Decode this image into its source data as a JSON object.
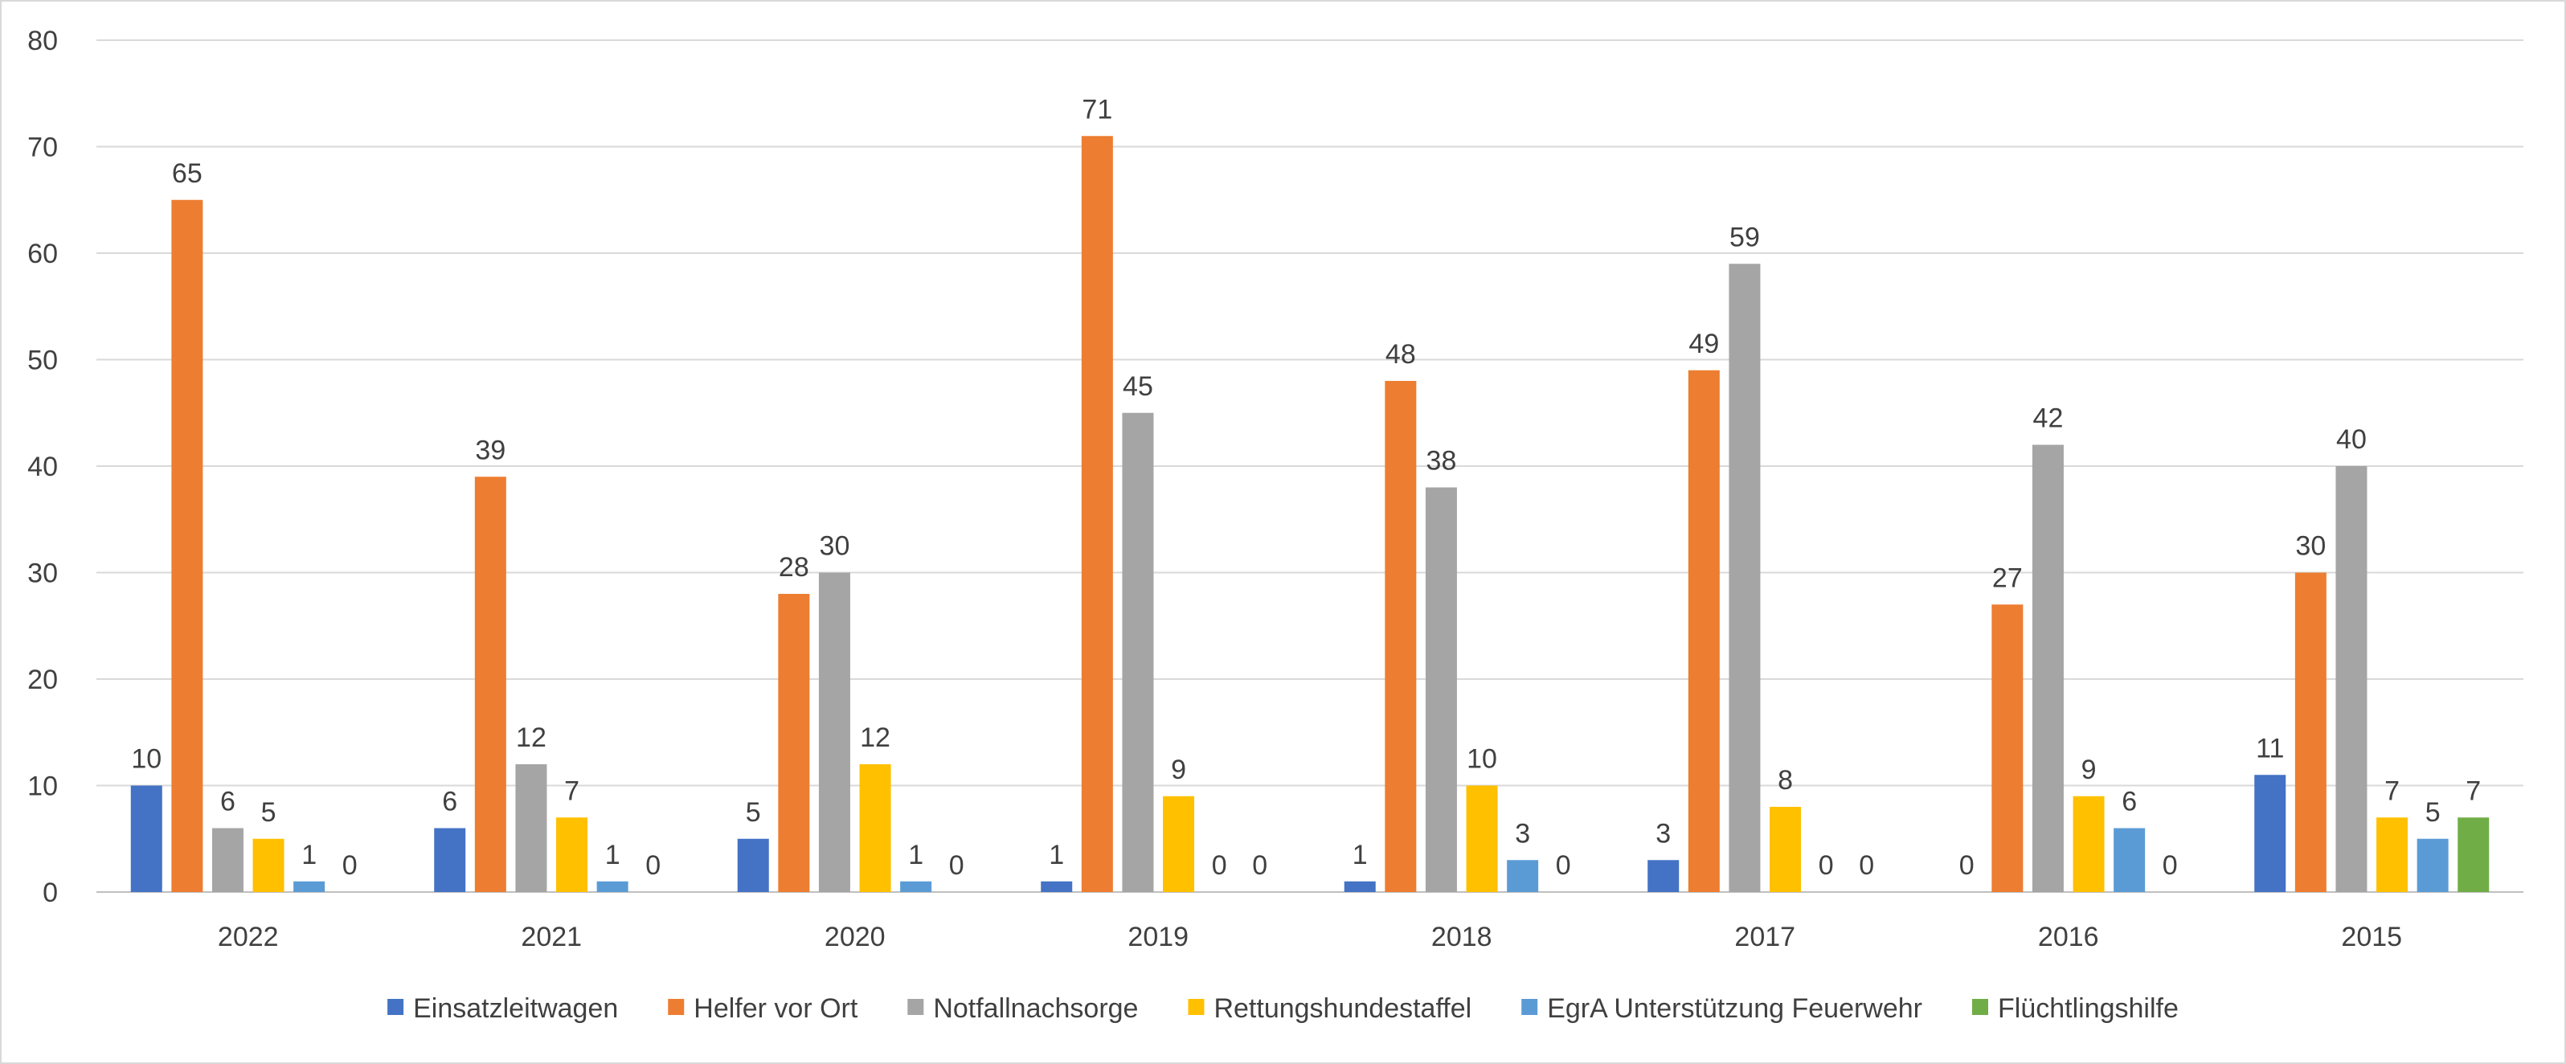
{
  "chart_data": {
    "type": "bar",
    "title": "",
    "xlabel": "",
    "ylabel": "",
    "ylim": [
      0,
      80
    ],
    "yticks": [
      0,
      10,
      20,
      30,
      40,
      50,
      60,
      70,
      80
    ],
    "grid": true,
    "legend_position": "bottom",
    "categories": [
      "2022",
      "2021",
      "2020",
      "2019",
      "2018",
      "2017",
      "2016",
      "2015"
    ],
    "series": [
      {
        "name": "Einsatzleitwagen",
        "color": "#4472C4",
        "values": [
          10,
          6,
          5,
          1,
          1,
          3,
          0,
          11
        ]
      },
      {
        "name": "Helfer vor Ort",
        "color": "#ED7D31",
        "values": [
          65,
          39,
          28,
          71,
          48,
          49,
          27,
          30
        ]
      },
      {
        "name": "Notfallnachsorge",
        "color": "#A5A5A5",
        "values": [
          6,
          12,
          30,
          45,
          38,
          59,
          42,
          40
        ]
      },
      {
        "name": "Rettungshundestaffel",
        "color": "#FFC000",
        "values": [
          5,
          7,
          12,
          9,
          10,
          8,
          9,
          7
        ]
      },
      {
        "name": "EgrA Unterstützung Feuerwehr",
        "color": "#5B9BD5",
        "values": [
          1,
          1,
          1,
          0,
          3,
          0,
          6,
          5
        ]
      },
      {
        "name": "Flüchtlingshilfe",
        "color": "#70AD47",
        "values": [
          0,
          0,
          0,
          0,
          0,
          0,
          0,
          7
        ]
      }
    ]
  }
}
